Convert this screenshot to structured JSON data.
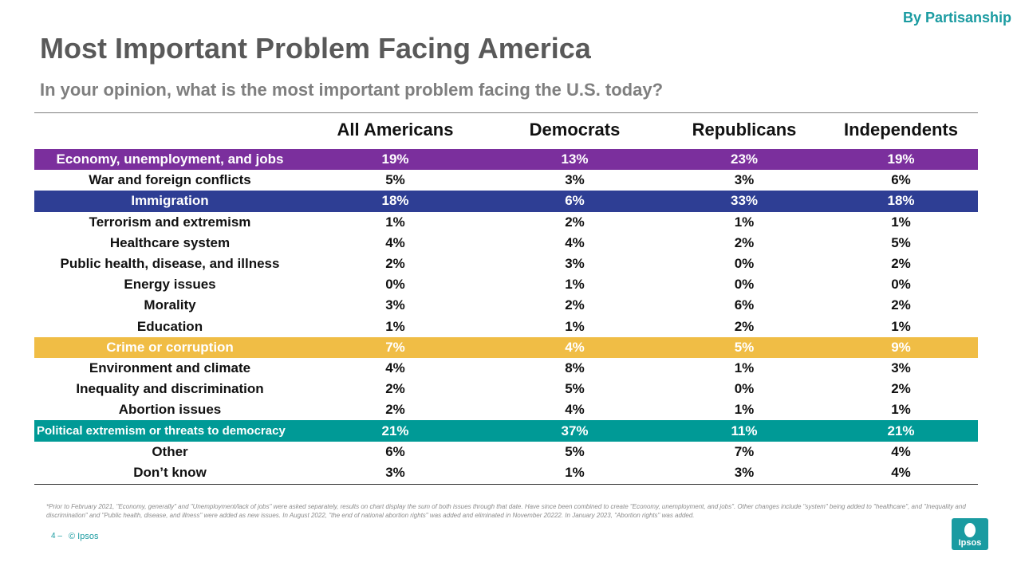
{
  "tag": "By Partisanship",
  "title": "Most Important Problem Facing America",
  "subtitle": "In your opinion, what is the most important problem facing the U.S. today?",
  "columns": [
    "All Americans",
    "Democrats",
    "Republicans",
    "Independents"
  ],
  "rows": [
    {
      "label": "Economy, unemployment, and jobs",
      "values": [
        "19%",
        "13%",
        "23%",
        "19%"
      ],
      "highlight": "#7b2f9d"
    },
    {
      "label": "War and foreign conflicts",
      "values": [
        "5%",
        "3%",
        "3%",
        "6%"
      ],
      "highlight": ""
    },
    {
      "label": "Immigration",
      "values": [
        "18%",
        "6%",
        "33%",
        "18%"
      ],
      "highlight": "#2e3e94"
    },
    {
      "label": "Terrorism and extremism",
      "values": [
        "1%",
        "2%",
        "1%",
        "1%"
      ],
      "highlight": ""
    },
    {
      "label": "Healthcare system",
      "values": [
        "4%",
        "4%",
        "2%",
        "5%"
      ],
      "highlight": ""
    },
    {
      "label": "Public health, disease, and illness",
      "values": [
        "2%",
        "3%",
        "0%",
        "2%"
      ],
      "highlight": ""
    },
    {
      "label": "Energy issues",
      "values": [
        "0%",
        "1%",
        "0%",
        "0%"
      ],
      "highlight": ""
    },
    {
      "label": "Morality",
      "values": [
        "3%",
        "2%",
        "6%",
        "2%"
      ],
      "highlight": ""
    },
    {
      "label": "Education",
      "values": [
        "1%",
        "1%",
        "2%",
        "1%"
      ],
      "highlight": ""
    },
    {
      "label": "Crime or corruption",
      "values": [
        "7%",
        "4%",
        "5%",
        "9%"
      ],
      "highlight": "#f0bd45"
    },
    {
      "label": "Environment and climate",
      "values": [
        "4%",
        "8%",
        "1%",
        "3%"
      ],
      "highlight": ""
    },
    {
      "label": "Inequality and discrimination",
      "values": [
        "2%",
        "5%",
        "0%",
        "2%"
      ],
      "highlight": ""
    },
    {
      "label": "Abortion issues",
      "values": [
        "2%",
        "4%",
        "1%",
        "1%"
      ],
      "highlight": ""
    },
    {
      "label": "Political extremism or threats to democracy",
      "values": [
        "21%",
        "37%",
        "11%",
        "21%"
      ],
      "highlight": "#009a96",
      "small": true
    },
    {
      "label": "Other",
      "values": [
        "6%",
        "5%",
        "7%",
        "4%"
      ],
      "highlight": ""
    },
    {
      "label": "Don’t know",
      "values": [
        "3%",
        "1%",
        "3%",
        "4%"
      ],
      "highlight": ""
    }
  ],
  "footnote": "*Prior to February 2021, \"Economy, generally\" and \"Unemployment/lack of jobs\" were asked separately, results on chart display the sum of both issues through that date. Have since been combined to create \"Economy, unemployment, and jobs\". Other changes include \"system\" being added to \"healthcare\", and \"Inequality and discrimination\" and \"Public health, disease, and illness\" were added as new issues. In August 2022, \"the end of national abortion rights\" was added and eliminated in November 20222. In January 2023, \"Abortion rights\" was added.",
  "page_number": "4 –",
  "copyright": "© Ipsos",
  "logo_text": "Ipsos"
}
